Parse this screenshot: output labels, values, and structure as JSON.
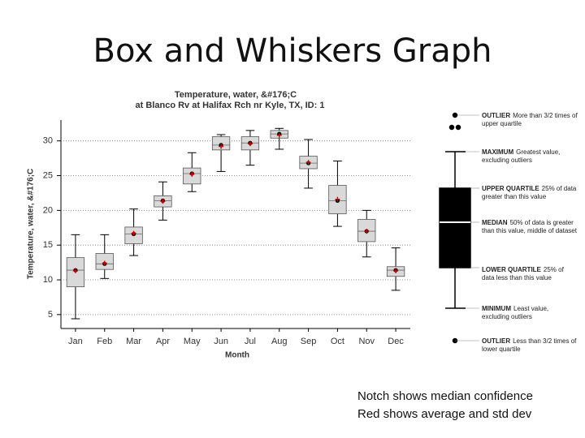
{
  "slide": {
    "title": "Box and Whiskers Graph",
    "notes": [
      "Notch shows median confidence",
      "Red shows average and std dev"
    ]
  },
  "chart_data": {
    "type": "box",
    "title": [
      "Temperature, water, &#176;C",
      "at Blanco Rv at Halifax Rch nr Kyle, TX,  ID: 1"
    ],
    "x_label": "Month",
    "y_label": "Temperature, water, &#176;C",
    "categories": [
      "Jan",
      "Feb",
      "Mar",
      "Apr",
      "May",
      "Jun",
      "Jul",
      "Aug",
      "Sep",
      "Oct",
      "Nov",
      "Dec"
    ],
    "boxes": [
      {
        "low": 4.4,
        "q1": 9.0,
        "median": 11.4,
        "q3": 13.2,
        "high": 16.5,
        "mean": 11.3
      },
      {
        "low": 10.2,
        "q1": 11.5,
        "median": 12.3,
        "q3": 13.8,
        "high": 16.5,
        "mean": 12.4
      },
      {
        "low": 13.5,
        "q1": 15.2,
        "median": 16.6,
        "q3": 17.6,
        "high": 20.2,
        "mean": 16.7
      },
      {
        "low": 18.6,
        "q1": 20.5,
        "median": 21.4,
        "q3": 22.1,
        "high": 24.1,
        "mean": 21.3
      },
      {
        "low": 22.7,
        "q1": 23.8,
        "median": 25.3,
        "q3": 26.1,
        "high": 28.3,
        "mean": 25.2
      },
      {
        "low": 25.6,
        "q1": 28.7,
        "median": 29.4,
        "q3": 30.6,
        "high": 30.9,
        "mean": 29.2
      },
      {
        "low": 26.5,
        "q1": 28.7,
        "median": 29.7,
        "q3": 30.6,
        "high": 31.5,
        "mean": 29.6
      },
      {
        "low": 28.8,
        "q1": 30.4,
        "median": 31.0,
        "q3": 31.5,
        "high": 31.8,
        "mean": 30.8
      },
      {
        "low": 23.2,
        "q1": 26.0,
        "median": 26.8,
        "q3": 27.8,
        "high": 30.2,
        "mean": 26.9
      },
      {
        "low": 17.7,
        "q1": 19.5,
        "median": 21.4,
        "q3": 23.6,
        "high": 27.1,
        "mean": 21.6
      },
      {
        "low": 13.3,
        "q1": 15.5,
        "median": 17.0,
        "q3": 18.7,
        "high": 20.0,
        "mean": 17.0
      },
      {
        "low": 8.5,
        "q1": 10.5,
        "median": 11.4,
        "q3": 11.9,
        "high": 14.6,
        "mean": 11.3
      }
    ],
    "box_color": "#d9d9d9",
    "median_color": "#000000",
    "mean_color": "#d00000",
    "ylim": [
      3,
      33
    ],
    "yticks": [
      5,
      10,
      15,
      20,
      25,
      30
    ],
    "grid": true,
    "legend_key": [
      {
        "label": "OUTLIER",
        "text": "More than 3/2 times of upper quartile"
      },
      {
        "label": "MAXIMUM",
        "text": "Greatest value, excluding outliers"
      },
      {
        "label": "UPPER QUARTILE",
        "text": "25% of data greater than this value"
      },
      {
        "label": "MEDIAN",
        "text": "50% of data is greater than this value, middle of dataset"
      },
      {
        "label": "LOWER QUARTILE",
        "text": "25% of data less than this value"
      },
      {
        "label": "MINIMUM",
        "text": "Least value, excluding outliers"
      },
      {
        "label": "OUTLIER",
        "text": "Less than 3/2 times of lower quartile"
      }
    ]
  }
}
